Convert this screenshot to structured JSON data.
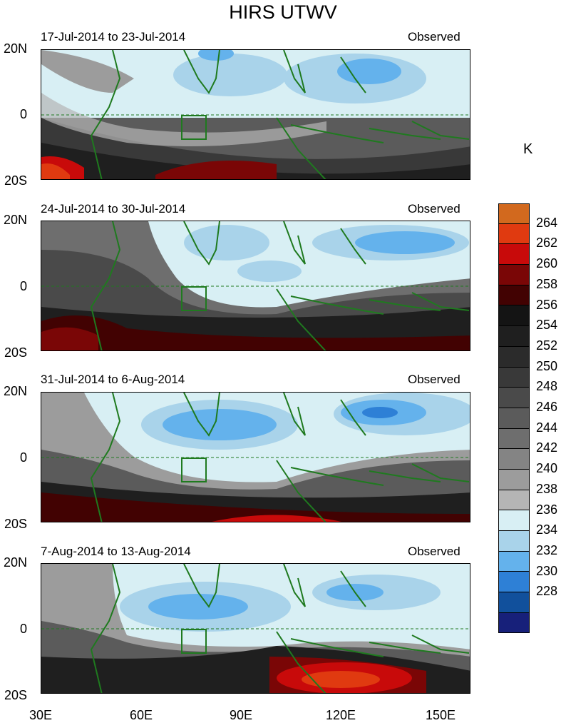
{
  "title": "HIRS UTWV",
  "panels": [
    {
      "date_range": "17-Jul-2014 to 23-Jul-2014",
      "tag": "Observed"
    },
    {
      "date_range": "24-Jul-2014 to 30-Jul-2014",
      "tag": "Observed"
    },
    {
      "date_range": "31-Jul-2014 to 6-Aug-2014",
      "tag": "Observed"
    },
    {
      "date_range": "7-Aug-2014 to 13-Aug-2014",
      "tag": "Observed"
    }
  ],
  "lat_labels": [
    "20N",
    "0",
    "20S"
  ],
  "lon_labels": [
    "30E",
    "60E",
    "90E",
    "120E",
    "150E"
  ],
  "colorbar": {
    "unit": "K",
    "labels": [
      "264",
      "262",
      "260",
      "258",
      "256",
      "254",
      "252",
      "250",
      "248",
      "246",
      "244",
      "242",
      "240",
      "238",
      "236",
      "234",
      "232",
      "230",
      "228"
    ],
    "colors": [
      "#d2691e",
      "#e03a10",
      "#c80a0a",
      "#7a0606",
      "#420202",
      "#141414",
      "#1f1f1f",
      "#2b2b2b",
      "#393939",
      "#4a4a4a",
      "#5b5b5b",
      "#6e6e6e",
      "#848484",
      "#9c9c9c",
      "#b5b5b5",
      "#d8eff4",
      "#a9d3ea",
      "#64b2ec",
      "#2e80d6",
      "#11509c",
      "#17207a"
    ]
  },
  "land_color": "#1f7a1f"
}
